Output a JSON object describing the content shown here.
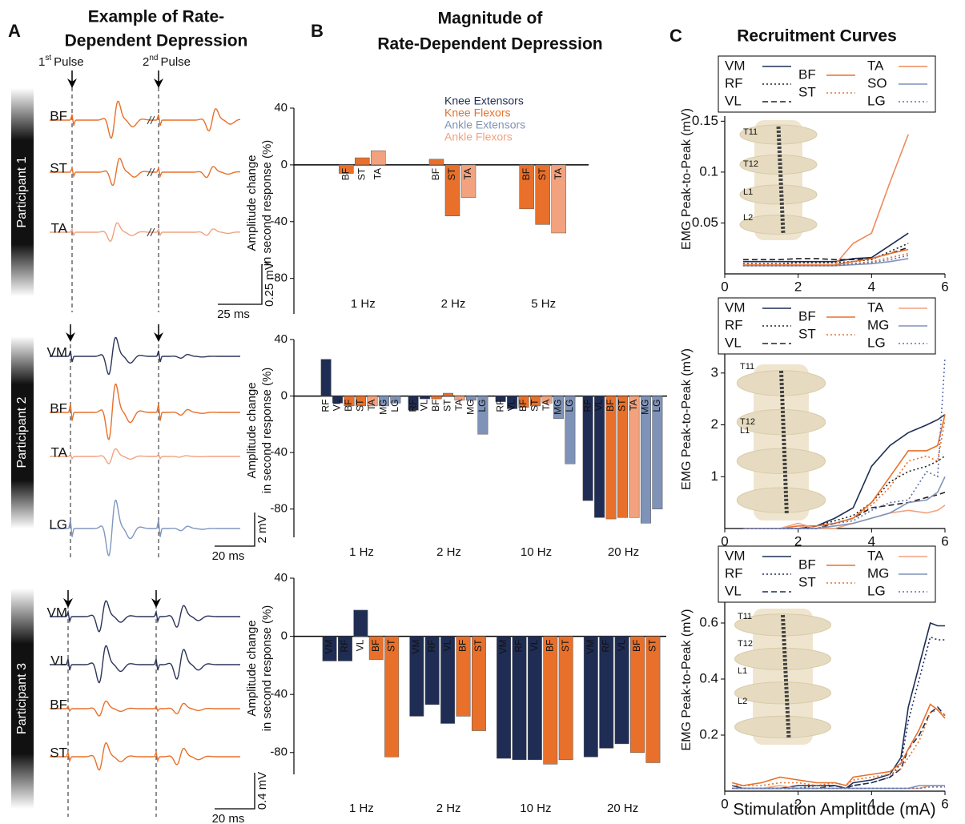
{
  "panel_labels": [
    "A",
    "B",
    "C"
  ],
  "panel_a": {
    "title": [
      "Example of Rate-",
      "Dependent Depression"
    ],
    "pulses": [
      {
        "number": "1",
        "suffix": "st",
        "text": "Pulse"
      },
      {
        "number": "2",
        "suffix": "nd",
        "text": "Pulse"
      }
    ],
    "participants": [
      {
        "name": "Participant 1",
        "muscles": [
          "BF",
          "ST",
          "TA"
        ],
        "scale": [
          "0.25 mV",
          "25 ms"
        ]
      },
      {
        "name": "Participant 2",
        "muscles": [
          "VM",
          "BF",
          "TA",
          "LG"
        ],
        "scale": [
          "2 mV",
          "20 ms"
        ]
      },
      {
        "name": "Participant 3",
        "muscles": [
          "VM",
          "VL",
          "BF",
          "ST"
        ],
        "scale": [
          "0.4 mV",
          "20 ms"
        ]
      }
    ]
  },
  "panel_b_title": [
    "Magnitude of",
    "Rate-Dependent Depression"
  ],
  "panel_c_title": "Recruitment Curves",
  "chart_data": [
    {
      "type": "bar",
      "y_label": [
        "Amplitude change",
        "in second response (%)"
      ],
      "ylim": [
        -105,
        40
      ],
      "yticks": [
        40,
        0,
        -40,
        -80
      ],
      "legend": [
        {
          "name": "Knee Extensors",
          "color": "#1f2d55"
        },
        {
          "name": "Knee Flexors",
          "color": "#e8702a"
        },
        {
          "name": "Ankle Extensors",
          "color": "#7f93b8"
        },
        {
          "name": "Ankle Flexors",
          "color": "#f2a27e"
        }
      ],
      "groups": [
        {
          "name": "1 Hz",
          "categories": [
            "BF",
            "ST",
            "TA"
          ],
          "values": [
            -6,
            5,
            10
          ],
          "colors": [
            "#e8702a",
            "#e8702a",
            "#f2a27e"
          ]
        },
        {
          "name": "2 Hz",
          "categories": [
            "BF",
            "ST",
            "TA"
          ],
          "values": [
            4,
            -36,
            -23
          ],
          "colors": [
            "#e8702a",
            "#e8702a",
            "#f2a27e"
          ]
        },
        {
          "name": "5 Hz",
          "categories": [
            "BF",
            "ST",
            "TA"
          ],
          "values": [
            -31,
            -42,
            -48
          ],
          "colors": [
            "#e8702a",
            "#e8702a",
            "#f2a27e"
          ]
        }
      ]
    },
    {
      "type": "bar",
      "y_label": [
        "Amplitude change",
        "in second response (%)"
      ],
      "ylim": [
        -100,
        40
      ],
      "yticks": [
        40,
        0,
        -40,
        -80
      ],
      "groups": [
        {
          "name": "1 Hz",
          "categories": [
            "RF",
            "VL",
            "BF",
            "ST",
            "TA",
            "MG",
            "LG"
          ],
          "values": [
            26,
            -5,
            -7,
            -7,
            -7,
            -7,
            -5
          ],
          "colors": [
            "#1f2d55",
            "#1f2d55",
            "#e8702a",
            "#e8702a",
            "#f2a27e",
            "#7f93b8",
            "#7f93b8"
          ]
        },
        {
          "name": "2 Hz",
          "categories": [
            "RF",
            "VL",
            "BF",
            "ST",
            "TA",
            "MG",
            "LG"
          ],
          "values": [
            -10,
            -2,
            -2,
            2,
            -3,
            -3,
            -27
          ],
          "colors": [
            "#1f2d55",
            "#1f2d55",
            "#e8702a",
            "#e8702a",
            "#f2a27e",
            "#7f93b8",
            "#7f93b8"
          ]
        },
        {
          "name": "10 Hz",
          "categories": [
            "RF",
            "VL",
            "BF",
            "ST",
            "TA",
            "MG",
            "LG"
          ],
          "values": [
            -4,
            -9,
            -8,
            -7,
            -5,
            -16,
            -48
          ],
          "colors": [
            "#1f2d55",
            "#1f2d55",
            "#e8702a",
            "#e8702a",
            "#f2a27e",
            "#7f93b8",
            "#7f93b8"
          ]
        },
        {
          "name": "20 Hz",
          "categories": [
            "RF",
            "VL",
            "BF",
            "ST",
            "TA",
            "MG",
            "LG"
          ],
          "values": [
            -74,
            -86,
            -87,
            -86,
            -86,
            -90,
            -80
          ],
          "colors": [
            "#1f2d55",
            "#1f2d55",
            "#e8702a",
            "#e8702a",
            "#f2a27e",
            "#7f93b8",
            "#7f93b8"
          ]
        }
      ]
    },
    {
      "type": "bar",
      "y_label": [
        "Amplitude change",
        "in second response (%)"
      ],
      "ylim": [
        -95,
        40
      ],
      "yticks": [
        40,
        0,
        -40,
        -80
      ],
      "groups": [
        {
          "name": "1 Hz",
          "categories": [
            "VM",
            "RF",
            "VL",
            "BF",
            "ST"
          ],
          "values": [
            -17,
            -17,
            18,
            -16,
            -83
          ],
          "colors": [
            "#1f2d55",
            "#1f2d55",
            "#1f2d55",
            "#e8702a",
            "#e8702a"
          ]
        },
        {
          "name": "2 Hz",
          "categories": [
            "VM",
            "RF",
            "VL",
            "BF",
            "ST"
          ],
          "values": [
            -55,
            -47,
            -60,
            -55,
            -65
          ],
          "colors": [
            "#1f2d55",
            "#1f2d55",
            "#1f2d55",
            "#e8702a",
            "#e8702a"
          ]
        },
        {
          "name": "10 Hz",
          "categories": [
            "VM",
            "RF",
            "VL",
            "BF",
            "ST"
          ],
          "values": [
            -84,
            -85,
            -85,
            -88,
            -85
          ],
          "colors": [
            "#1f2d55",
            "#1f2d55",
            "#1f2d55",
            "#e8702a",
            "#e8702a"
          ]
        },
        {
          "name": "20 Hz",
          "categories": [
            "VM",
            "RF",
            "VL",
            "BF",
            "ST"
          ],
          "values": [
            -83,
            -77,
            -74,
            -80,
            -87
          ],
          "colors": [
            "#1f2d55",
            "#1f2d55",
            "#1f2d55",
            "#e8702a",
            "#e8702a"
          ]
        }
      ]
    },
    {
      "type": "line",
      "y_label": "EMG Peak-to-Peak (mV)",
      "xlim": [
        0,
        6
      ],
      "xticks": [
        0,
        2,
        4,
        6
      ],
      "ylim": [
        0,
        0.155
      ],
      "yticks": [
        0.05,
        0.1,
        0.15
      ],
      "inset_labels": [
        "T11",
        "T12",
        "L1",
        "L2"
      ],
      "x": [
        0.5,
        1,
        1.5,
        2,
        2.5,
        3,
        3.5,
        4,
        4.5,
        5
      ],
      "series": [
        {
          "name": "VM",
          "color": "#1f2d55",
          "dash": "solid",
          "values": [
            0.012,
            0.012,
            0.012,
            0.012,
            0.012,
            0.012,
            0.015,
            0.016,
            0.028,
            0.04
          ]
        },
        {
          "name": "RF",
          "color": "#222222",
          "dash": "dotted",
          "values": [
            0.01,
            0.01,
            0.01,
            0.011,
            0.011,
            0.011,
            0.012,
            0.014,
            0.022,
            0.03
          ]
        },
        {
          "name": "VL",
          "color": "#222222",
          "dash": "dashed",
          "values": [
            0.014,
            0.014,
            0.014,
            0.015,
            0.015,
            0.014,
            0.014,
            0.015,
            0.02,
            0.026
          ]
        },
        {
          "name": "BF",
          "color": "#e8702a",
          "dash": "solid",
          "values": [
            0.009,
            0.009,
            0.009,
            0.009,
            0.009,
            0.009,
            0.012,
            0.015,
            0.02,
            0.024
          ]
        },
        {
          "name": "ST",
          "color": "#e8702a",
          "dash": "dotted",
          "values": [
            0.009,
            0.009,
            0.009,
            0.009,
            0.009,
            0.009,
            0.01,
            0.012,
            0.016,
            0.02
          ]
        },
        {
          "name": "TA",
          "color": "#ef8a5a",
          "dash": "solid",
          "values": [
            0.009,
            0.009,
            0.009,
            0.009,
            0.009,
            0.009,
            0.03,
            0.04,
            0.09,
            0.137
          ]
        },
        {
          "name": "SO",
          "color": "#7f93b8",
          "dash": "solid",
          "values": [
            0.008,
            0.008,
            0.008,
            0.008,
            0.008,
            0.008,
            0.009,
            0.01,
            0.012,
            0.015
          ]
        },
        {
          "name": "LG",
          "color": "#5f6fae",
          "dash": "dotted",
          "values": [
            0.008,
            0.008,
            0.008,
            0.008,
            0.008,
            0.008,
            0.01,
            0.011,
            0.014,
            0.018
          ]
        }
      ]
    },
    {
      "type": "line",
      "y_label": "EMG Peak-to-Peak (mV)",
      "xlim": [
        0,
        6
      ],
      "xticks": [
        0,
        2,
        4,
        6
      ],
      "ylim": [
        0,
        3.6
      ],
      "yticks": [
        1,
        2,
        3
      ],
      "inset_labels": [
        "T11",
        "T12",
        "L1"
      ],
      "x": [
        0.5,
        1,
        1.5,
        2,
        2.5,
        3,
        3.5,
        4,
        4.5,
        5,
        5.5,
        5.8,
        6
      ],
      "series": [
        {
          "name": "VM",
          "color": "#1f2d55",
          "dash": "solid",
          "values": [
            0,
            0,
            0,
            0,
            0.05,
            0.2,
            0.4,
            1.2,
            1.6,
            1.85,
            2.0,
            2.1,
            2.2
          ]
        },
        {
          "name": "RF",
          "color": "#222222",
          "dash": "dotted",
          "values": [
            0,
            0,
            0,
            0,
            0.05,
            0.15,
            0.25,
            0.5,
            0.9,
            1.1,
            1.2,
            1.3,
            1.4
          ]
        },
        {
          "name": "VL",
          "color": "#222222",
          "dash": "dashed",
          "values": [
            0,
            0,
            0,
            0,
            0,
            0.1,
            0.2,
            0.4,
            0.45,
            0.5,
            0.6,
            0.65,
            0.7
          ]
        },
        {
          "name": "BF",
          "color": "#e8702a",
          "dash": "solid",
          "values": [
            0,
            0,
            0,
            0.05,
            0.05,
            0.1,
            0.2,
            0.5,
            1.0,
            1.5,
            1.5,
            1.6,
            2.2
          ]
        },
        {
          "name": "ST",
          "color": "#e8702a",
          "dash": "dotted",
          "values": [
            0,
            0,
            0,
            0,
            0.05,
            0.1,
            0.2,
            0.45,
            0.8,
            1.3,
            1.4,
            1.3,
            2.1
          ]
        },
        {
          "name": "TA",
          "color": "#f2a27e",
          "dash": "solid",
          "values": [
            0,
            0,
            0,
            0.1,
            0,
            0,
            0.1,
            0.2,
            0.3,
            0.35,
            0.3,
            0.35,
            0.45
          ]
        },
        {
          "name": "MG",
          "color": "#7f93b8",
          "dash": "solid",
          "values": [
            0,
            0,
            0,
            0,
            0,
            0.05,
            0.1,
            0.2,
            0.3,
            0.5,
            0.55,
            0.7,
            1.0
          ]
        },
        {
          "name": "LG",
          "color": "#5f6fae",
          "dash": "dotted",
          "values": [
            0,
            0,
            0,
            0,
            0,
            0.1,
            0.15,
            0.35,
            0.5,
            0.55,
            1.1,
            1.0,
            3.3
          ]
        }
      ]
    },
    {
      "type": "line",
      "y_label": "EMG Peak-to-Peak (mV)",
      "x_label": "Stimulation Amplitude (mA)",
      "xlim": [
        0,
        6
      ],
      "xticks": [
        0,
        2,
        4,
        6
      ],
      "ylim": [
        0,
        0.68
      ],
      "yticks": [
        0.2,
        0.4,
        0.6
      ],
      "inset_labels": [
        "T11",
        "T12",
        "L1",
        "L2"
      ],
      "x": [
        0.2,
        0.5,
        1,
        1.5,
        2,
        2.5,
        3,
        3.3,
        3.5,
        4,
        4.5,
        4.8,
        5,
        5.3,
        5.6,
        5.8,
        6
      ],
      "series": [
        {
          "name": "VM",
          "color": "#1f2d55",
          "dash": "solid",
          "values": [
            0.02,
            0.01,
            0.01,
            0.01,
            0.02,
            0.02,
            0.02,
            0.01,
            0.03,
            0.04,
            0.06,
            0.12,
            0.3,
            0.45,
            0.6,
            0.59,
            0.59
          ]
        },
        {
          "name": "RF",
          "color": "#1f2d55",
          "dash": "dotted",
          "values": [
            0.01,
            0.01,
            0.01,
            0.01,
            0.01,
            0.02,
            0.02,
            0.01,
            0.02,
            0.03,
            0.05,
            0.1,
            0.25,
            0.4,
            0.55,
            0.54,
            0.54
          ]
        },
        {
          "name": "VL",
          "color": "#1f2d55",
          "dash": "dashed",
          "values": [
            0.01,
            0.01,
            0.01,
            0.01,
            0.01,
            0.01,
            0.02,
            0.01,
            0.02,
            0.03,
            0.05,
            0.08,
            0.15,
            0.2,
            0.28,
            0.3,
            0.27
          ]
        },
        {
          "name": "BF",
          "color": "#e8702a",
          "dash": "solid",
          "values": [
            0.03,
            0.02,
            0.03,
            0.05,
            0.04,
            0.03,
            0.03,
            0.02,
            0.05,
            0.06,
            0.07,
            0.1,
            0.15,
            0.22,
            0.31,
            0.29,
            0.26
          ]
        },
        {
          "name": "ST",
          "color": "#e8702a",
          "dash": "dotted",
          "values": [
            0.02,
            0.02,
            0.02,
            0.03,
            0.03,
            0.02,
            0.03,
            0.02,
            0.04,
            0.05,
            0.06,
            0.08,
            0.12,
            0.18,
            0.28,
            0.29,
            0.27
          ]
        },
        {
          "name": "TA",
          "color": "#f2a27e",
          "dash": "solid",
          "values": [
            0.01,
            0.01,
            0.01,
            0.02,
            0.01,
            0.01,
            0.01,
            0.01,
            0.01,
            0.01,
            0.01,
            0.01,
            0.01,
            0.01,
            0.02,
            0.02,
            0.02
          ]
        },
        {
          "name": "MG",
          "color": "#7f93b8",
          "dash": "solid",
          "values": [
            0.01,
            0.01,
            0.01,
            0.01,
            0.01,
            0.01,
            0.01,
            0.01,
            0.01,
            0.01,
            0.01,
            0.01,
            0.01,
            0.02,
            0.02,
            0.02,
            0.02
          ]
        },
        {
          "name": "LG",
          "color": "#5f6fae",
          "dash": "dotted",
          "values": [
            0.01,
            0.01,
            0.01,
            0.01,
            0.01,
            0.01,
            0.01,
            0.01,
            0.01,
            0.01,
            0.01,
            0.01,
            0.01,
            0.01,
            0.015,
            0.015,
            0.015
          ]
        }
      ]
    }
  ]
}
